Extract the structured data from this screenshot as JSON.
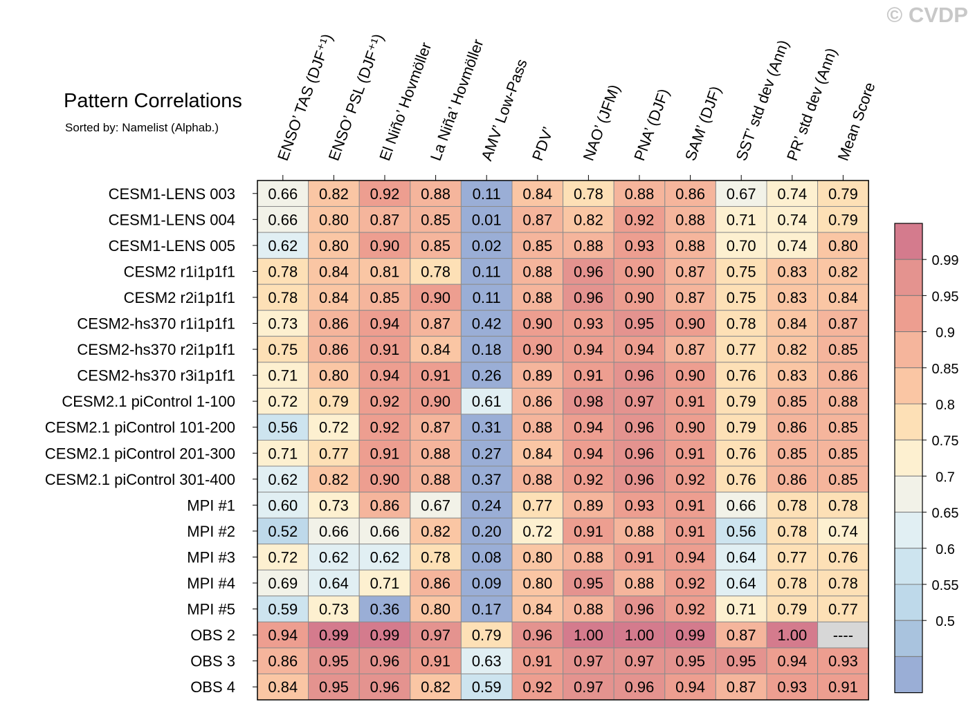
{
  "title": "Pattern Correlations",
  "subtitle": "Sorted by: Namelist (Alphab.)",
  "watermark": "© CVDP",
  "chart_data": {
    "type": "heatmap",
    "columns": [
      "ENSO’ TAS (DJF⁺¹)",
      "ENSO’ PSL (DJF⁺¹)",
      "El Niño’ Hovmöller",
      "La Niña’ Hovmöller",
      "AMV’ Low-Pass",
      "PDV’",
      "NAO’ (JFM)",
      "PNA’ (DJF)",
      "SAM’ (DJF)",
      "SST’ std dev (Ann)",
      "PR’ std dev (Ann)",
      "Mean Score"
    ],
    "rows": [
      "CESM1-LENS 003",
      "CESM1-LENS 004",
      "CESM1-LENS 005",
      "CESM2 r1i1p1f1",
      "CESM2 r2i1p1f1",
      "CESM2-hs370 r1i1p1f1",
      "CESM2-hs370 r2i1p1f1",
      "CESM2-hs370 r3i1p1f1",
      "CESM2.1 piControl 1-100",
      "CESM2.1 piControl 101-200",
      "CESM2.1 piControl 201-300",
      "CESM2.1 piControl 301-400",
      "MPI #1",
      "MPI #2",
      "MPI #3",
      "MPI #4",
      "MPI #5",
      "OBS 2",
      "OBS 3",
      "OBS 4"
    ],
    "values": [
      [
        "0.66",
        "0.82",
        "0.92",
        "0.88",
        "0.11",
        "0.84",
        "0.78",
        "0.88",
        "0.86",
        "0.67",
        "0.74",
        "0.79"
      ],
      [
        "0.66",
        "0.80",
        "0.87",
        "0.85",
        "0.01",
        "0.87",
        "0.82",
        "0.92",
        "0.88",
        "0.71",
        "0.74",
        "0.79"
      ],
      [
        "0.62",
        "0.80",
        "0.90",
        "0.85",
        "0.02",
        "0.85",
        "0.88",
        "0.93",
        "0.88",
        "0.70",
        "0.74",
        "0.80"
      ],
      [
        "0.78",
        "0.84",
        "0.81",
        "0.78",
        "0.11",
        "0.88",
        "0.96",
        "0.90",
        "0.87",
        "0.75",
        "0.83",
        "0.82"
      ],
      [
        "0.78",
        "0.84",
        "0.85",
        "0.90",
        "0.11",
        "0.88",
        "0.96",
        "0.90",
        "0.87",
        "0.75",
        "0.83",
        "0.84"
      ],
      [
        "0.73",
        "0.86",
        "0.94",
        "0.87",
        "0.42",
        "0.90",
        "0.93",
        "0.95",
        "0.90",
        "0.78",
        "0.84",
        "0.87"
      ],
      [
        "0.75",
        "0.86",
        "0.91",
        "0.84",
        "0.18",
        "0.90",
        "0.94",
        "0.94",
        "0.87",
        "0.77",
        "0.82",
        "0.85"
      ],
      [
        "0.71",
        "0.80",
        "0.94",
        "0.91",
        "0.26",
        "0.89",
        "0.91",
        "0.96",
        "0.90",
        "0.76",
        "0.83",
        "0.86"
      ],
      [
        "0.72",
        "0.79",
        "0.92",
        "0.90",
        "0.61",
        "0.86",
        "0.98",
        "0.97",
        "0.91",
        "0.79",
        "0.85",
        "0.88"
      ],
      [
        "0.56",
        "0.72",
        "0.92",
        "0.87",
        "0.31",
        "0.88",
        "0.94",
        "0.96",
        "0.90",
        "0.79",
        "0.86",
        "0.85"
      ],
      [
        "0.71",
        "0.77",
        "0.91",
        "0.88",
        "0.27",
        "0.84",
        "0.94",
        "0.96",
        "0.91",
        "0.76",
        "0.85",
        "0.85"
      ],
      [
        "0.62",
        "0.82",
        "0.90",
        "0.88",
        "0.37",
        "0.88",
        "0.92",
        "0.96",
        "0.92",
        "0.76",
        "0.86",
        "0.85"
      ],
      [
        "0.60",
        "0.73",
        "0.86",
        "0.67",
        "0.24",
        "0.77",
        "0.89",
        "0.93",
        "0.91",
        "0.66",
        "0.78",
        "0.78"
      ],
      [
        "0.52",
        "0.66",
        "0.66",
        "0.82",
        "0.20",
        "0.72",
        "0.91",
        "0.88",
        "0.91",
        "0.56",
        "0.78",
        "0.74"
      ],
      [
        "0.72",
        "0.62",
        "0.62",
        "0.78",
        "0.08",
        "0.80",
        "0.88",
        "0.91",
        "0.94",
        "0.64",
        "0.77",
        "0.76"
      ],
      [
        "0.69",
        "0.64",
        "0.71",
        "0.86",
        "0.09",
        "0.80",
        "0.95",
        "0.88",
        "0.92",
        "0.64",
        "0.78",
        "0.78"
      ],
      [
        "0.59",
        "0.73",
        "0.36",
        "0.80",
        "0.17",
        "0.84",
        "0.88",
        "0.96",
        "0.92",
        "0.71",
        "0.79",
        "0.77"
      ],
      [
        "0.94",
        "0.99",
        "0.99",
        "0.97",
        "0.79",
        "0.96",
        "1.00",
        "1.00",
        "0.99",
        "0.87",
        "1.00",
        "----"
      ],
      [
        "0.86",
        "0.95",
        "0.96",
        "0.91",
        "0.63",
        "0.91",
        "0.97",
        "0.97",
        "0.95",
        "0.95",
        "0.94",
        "0.93"
      ],
      [
        "0.84",
        "0.95",
        "0.96",
        "0.82",
        "0.59",
        "0.92",
        "0.97",
        "0.96",
        "0.94",
        "0.87",
        "0.93",
        "0.91"
      ]
    ],
    "colorbar": {
      "labels": [
        "0.99",
        "0.95",
        "0.9",
        "0.85",
        "0.8",
        "0.75",
        "0.7",
        "0.65",
        "0.6",
        "0.55",
        "0.5"
      ],
      "colors": [
        "#d47b8d",
        "#e4938f",
        "#ed9e90",
        "#f5b59c",
        "#fac6a4",
        "#fde0b6",
        "#fdf0d0",
        "#f2f2e8",
        "#e1eff3",
        "#cde4ef",
        "#bed9ea",
        "#a9c3de",
        "#9aaed6"
      ]
    },
    "missing_color": "#d7d7d7"
  }
}
